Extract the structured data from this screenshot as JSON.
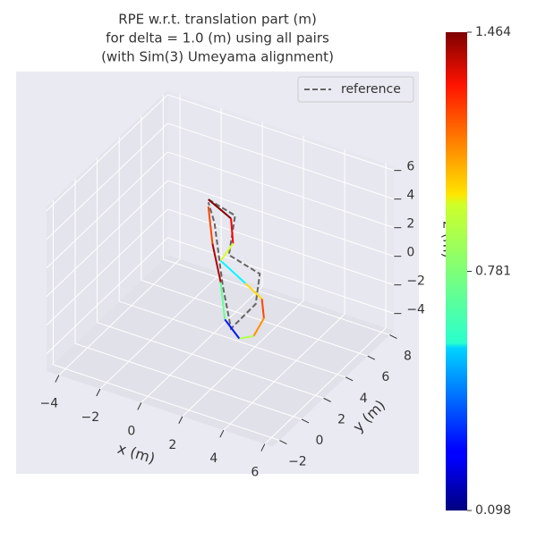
{
  "chart_data": {
    "type": "line3d",
    "title": [
      "RPE w.r.t. translation part (m)",
      "for delta = 1.0 (m) using all pairs",
      "(with Sim(3) Umeyama alignment)"
    ],
    "x_label": "x (m)",
    "y_label": "y (m)",
    "z_label": "z (m)",
    "xlim": [
      -4.6,
      6.4
    ],
    "ylim": [
      -2.6,
      8.4
    ],
    "zlim": [
      -5.2,
      6.3
    ],
    "xticks": [
      {
        "value": -4,
        "label": "−4"
      },
      {
        "value": -2,
        "label": "−2"
      },
      0,
      2,
      4,
      6
    ],
    "yticks": [
      {
        "value": -2,
        "label": "−2"
      },
      0,
      2,
      4,
      6,
      8
    ],
    "zticks": [
      {
        "value": -4,
        "label": "−4"
      },
      {
        "value": -2,
        "label": "−2"
      },
      0,
      2,
      4,
      6
    ],
    "grid": true,
    "legend_position": "upper right",
    "series": [
      {
        "name": "reference",
        "color": "#666666",
        "dashed": true,
        "x": [
          0.8,
          2.1,
          1.8,
          3.3,
          3.1,
          1.9,
          1.5,
          1.1,
          0.8
        ],
        "y": [
          2,
          2,
          2,
          2,
          2,
          2,
          2,
          2,
          2
        ],
        "z": [
          6.0,
          5.5,
          2.6,
          2.0,
          -0.2,
          -2.5,
          0.3,
          4.5,
          5.8
        ]
      }
    ],
    "trajectory": {
      "x": [
        0.8,
        1.9,
        2.0,
        1.4,
        2.6,
        3.4,
        3.5,
        3.0,
        2.3,
        1.6,
        1.4,
        1.0,
        0.8
      ],
      "y": [
        2,
        2,
        2,
        2,
        2,
        2,
        2,
        2,
        2,
        2,
        2,
        2,
        2
      ],
      "z": [
        6.0,
        5.2,
        3.5,
        2.0,
        1.0,
        0.3,
        -1.0,
        -2.5,
        -3.0,
        -2.0,
        0.5,
        3.0,
        5.5
      ],
      "values": [
        1.46,
        1.3,
        0.9,
        0.6,
        1.0,
        1.2,
        1.1,
        0.85,
        0.3,
        0.75,
        1.4,
        1.2,
        1.35
      ]
    },
    "colorbar": {
      "cmap": "jet",
      "lim": [
        0.098,
        1.464
      ],
      "ticks": [
        0.098,
        0.781,
        1.464
      ]
    }
  }
}
